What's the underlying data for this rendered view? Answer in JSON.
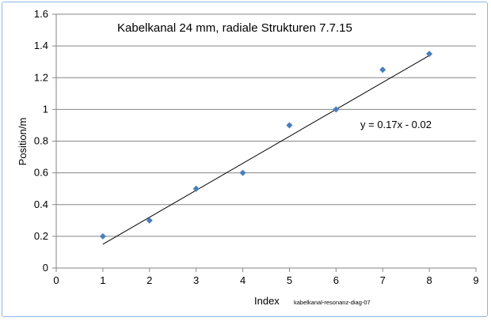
{
  "chart_data": {
    "type": "scatter",
    "title": "Kabelkanal 24 mm, radiale Strukturen 7.7.15",
    "xlabel": "Index",
    "ylabel": "Position/m",
    "xlim": [
      0,
      9
    ],
    "ylim": [
      0,
      1.6
    ],
    "x_ticks": [
      "0",
      "1",
      "2",
      "3",
      "4",
      "5",
      "6",
      "7",
      "8",
      "9"
    ],
    "y_ticks": [
      "0",
      "0.2",
      "0.4",
      "0.6",
      "0.8",
      "1",
      "1.2",
      "1.4",
      "1.6"
    ],
    "grid": "horizontal",
    "points": [
      {
        "x": 1,
        "y": 0.2
      },
      {
        "x": 2,
        "y": 0.3
      },
      {
        "x": 3,
        "y": 0.5
      },
      {
        "x": 4,
        "y": 0.6
      },
      {
        "x": 5,
        "y": 0.9
      },
      {
        "x": 6,
        "y": 1.0
      },
      {
        "x": 7,
        "y": 1.25
      },
      {
        "x": 8,
        "y": 1.35
      }
    ],
    "trendline": {
      "type": "linear",
      "slope": 0.17,
      "intercept": -0.02,
      "x_range": [
        1,
        8
      ],
      "label": "y = 0.17x - 0.02"
    },
    "marker_color": "#4a7ebb",
    "annotation": "kabelkanal-resonanz-diag-07"
  }
}
